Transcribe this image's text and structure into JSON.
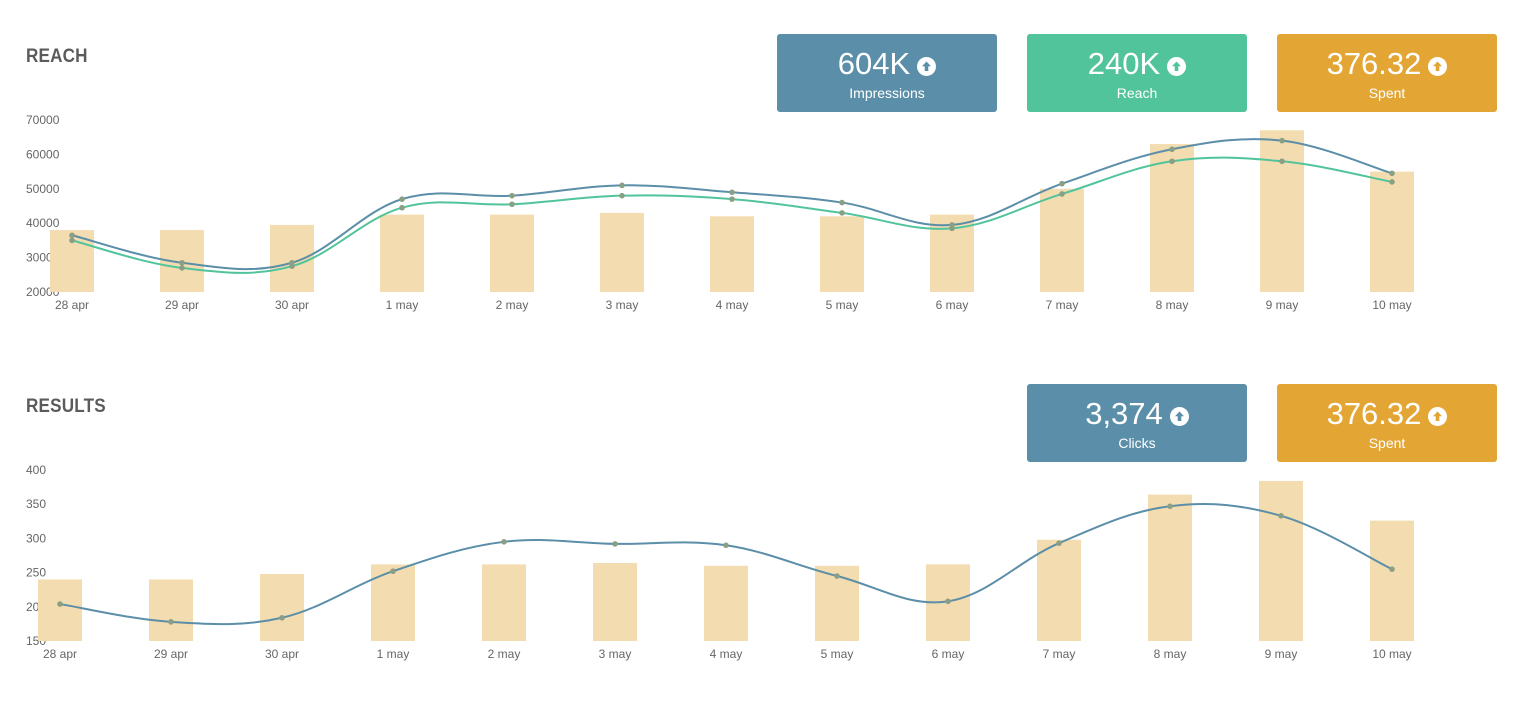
{
  "sections": [
    {
      "title": "REACH",
      "cards": [
        {
          "value": "604K",
          "label": "Impressions",
          "color": "#5b8ea8",
          "icon": "arrow-up-circle-icon"
        },
        {
          "value": "240K",
          "label": "Reach",
          "color": "#52c49c",
          "icon": "arrow-up-circle-icon"
        },
        {
          "value": "376.32",
          "label": "Spent",
          "color": "#e3a634",
          "icon": "arrow-up-circle-icon"
        }
      ]
    },
    {
      "title": "RESULTS",
      "cards": [
        {
          "value": "3,374",
          "label": "Clicks",
          "color": "#5b8ea8",
          "icon": "arrow-up-circle-icon"
        },
        {
          "value": "376.32",
          "label": "Spent",
          "color": "#e3a634",
          "icon": "arrow-up-circle-icon"
        }
      ]
    }
  ],
  "chart_data": [
    {
      "type": "bar+line",
      "title": "REACH",
      "categories": [
        "28 apr",
        "29 apr",
        "30 apr",
        "1 may",
        "2 may",
        "3 may",
        "4 may",
        "5 may",
        "6 may",
        "7 may",
        "8 may",
        "9 may",
        "10 may"
      ],
      "ylim": [
        20000,
        70000
      ],
      "yticks": [
        20000,
        30000,
        40000,
        50000,
        60000,
        70000
      ],
      "grid": false,
      "bars": {
        "color": "#f3dcaf",
        "values": [
          38000,
          38000,
          39500,
          42500,
          42500,
          43000,
          42000,
          42000,
          42500,
          50000,
          63000,
          67000,
          55000
        ]
      },
      "series": [
        {
          "color": "#5b8ea8",
          "values": [
            36500,
            28500,
            28500,
            47000,
            48000,
            51000,
            49000,
            46000,
            39500,
            51500,
            61500,
            64000,
            54500
          ]
        },
        {
          "color": "#52c49c",
          "values": [
            35000,
            27000,
            27500,
            44500,
            45500,
            48000,
            47000,
            43000,
            38500,
            48500,
            58000,
            58000,
            52000
          ]
        }
      ]
    },
    {
      "type": "bar+line",
      "title": "RESULTS",
      "categories": [
        "28 apr",
        "29 apr",
        "30 apr",
        "1 may",
        "2 may",
        "3 may",
        "4 may",
        "5 may",
        "6 may",
        "7 may",
        "8 may",
        "9 may",
        "10 may"
      ],
      "ylim": [
        150,
        400
      ],
      "yticks": [
        150,
        200,
        250,
        300,
        350,
        400
      ],
      "grid": false,
      "bars": {
        "color": "#f3dcaf",
        "values": [
          240,
          240,
          248,
          262,
          262,
          264,
          260,
          260,
          262,
          298,
          364,
          384,
          326
        ]
      },
      "series": [
        {
          "color": "#5b8ea8",
          "values": [
            204,
            178,
            184,
            252,
            295,
            292,
            290,
            245,
            208,
            293,
            347,
            333,
            255
          ]
        }
      ]
    }
  ]
}
